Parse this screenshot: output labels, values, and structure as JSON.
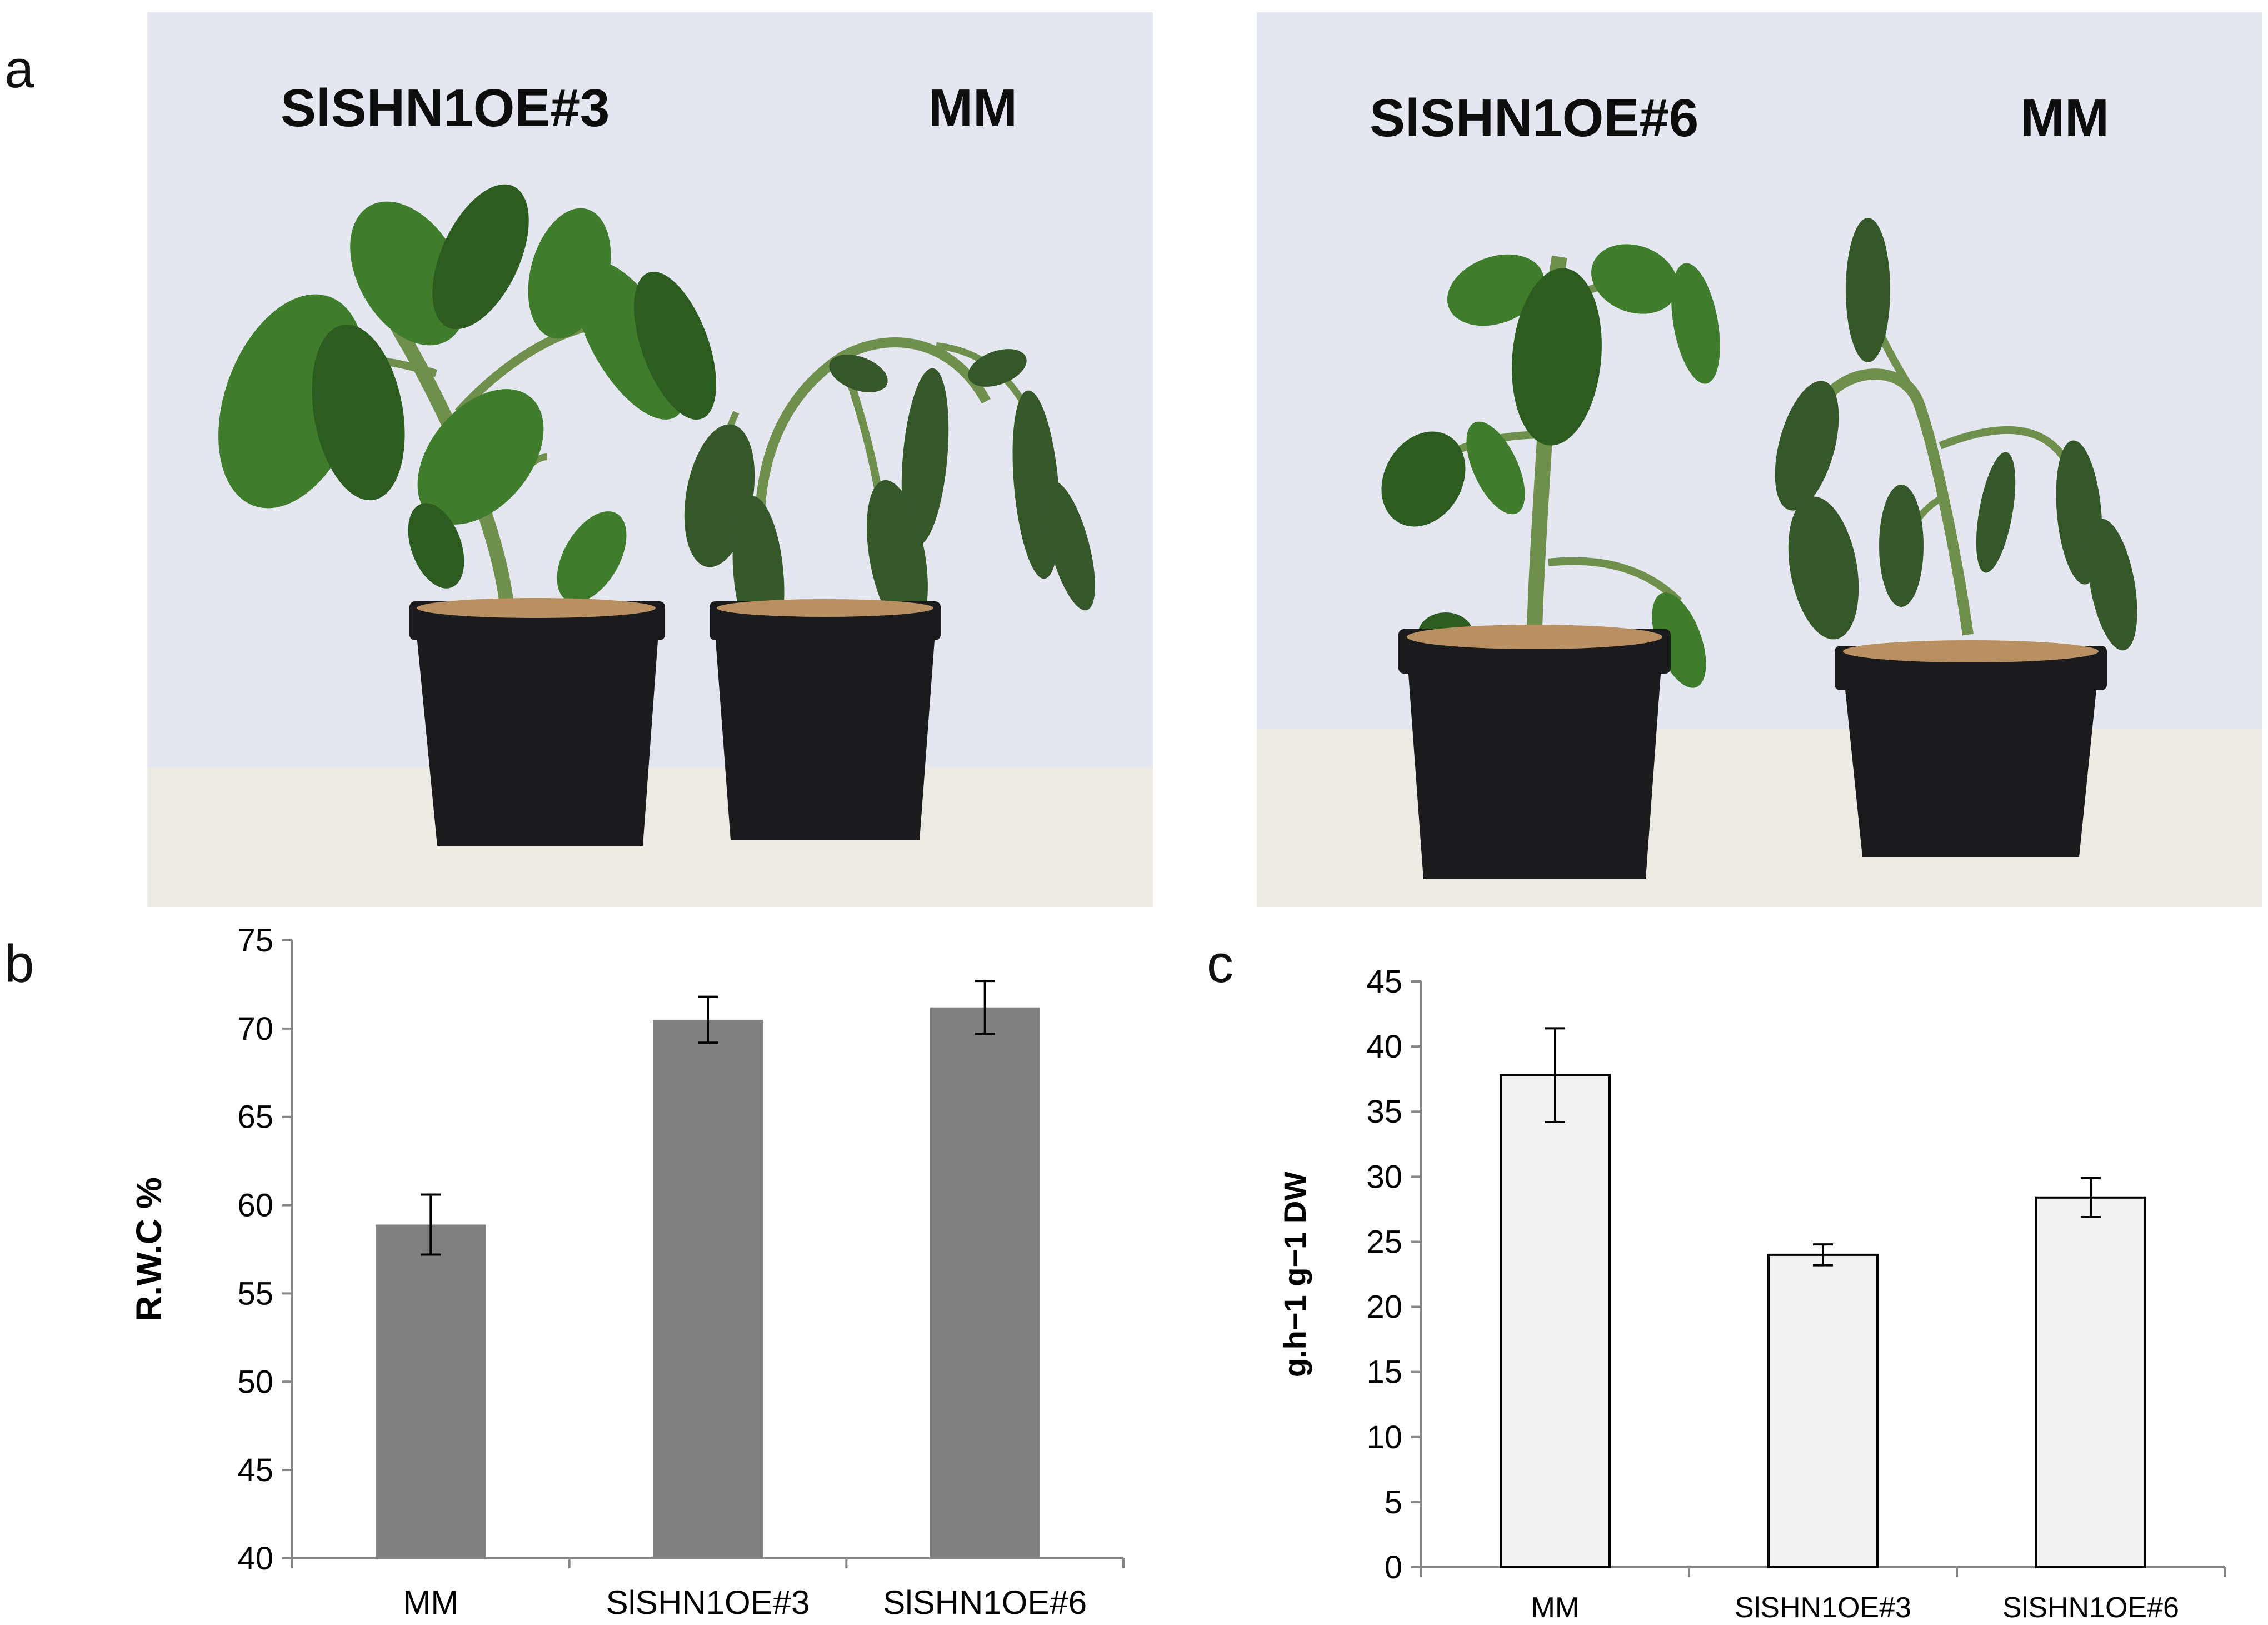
{
  "panels": {
    "a": "a",
    "b": "b",
    "c": "c"
  },
  "photos": [
    {
      "labels": [
        "SlSHN1OE#3",
        "MM"
      ],
      "plant_states": [
        "upright",
        "wilted"
      ]
    },
    {
      "labels": [
        "SlSHN1OE#6",
        "MM"
      ],
      "plant_states": [
        "upright",
        "wilted"
      ]
    }
  ],
  "colors": {
    "wall": "#e4e7ef",
    "table": "#eceae1",
    "pot": "#1b1b1d",
    "soil": "#b89062",
    "leaf": "#3f7d2c",
    "leaf_dark": "#2c5c20",
    "leaf_wilted": "#35572a",
    "stem": "#6f8f4d",
    "bar_b": "#808080",
    "bar_c": "#f2f2f2",
    "bar_c_stroke": "#000000",
    "axis": "#868686"
  },
  "chart_data": [
    {
      "type": "bar",
      "title": "",
      "xlabel": "",
      "ylabel": "R.W.C %",
      "categories": [
        "MM",
        "SlSHN1OE#3",
        "SlSHN1OE#6"
      ],
      "values": [
        58.9,
        70.5,
        71.2
      ],
      "errors": [
        1.7,
        1.3,
        1.5
      ],
      "ylim": [
        40,
        75
      ],
      "yticks": [
        40,
        45,
        50,
        55,
        60,
        65,
        70,
        75
      ],
      "grid": false,
      "legend": "none"
    },
    {
      "type": "bar",
      "title": "",
      "xlabel": "",
      "ylabel": "g.h−1 g−1 DW",
      "categories": [
        "MM",
        "SlSHN1OE#3",
        "SlSHN1OE#6"
      ],
      "values": [
        37.8,
        24.0,
        28.4
      ],
      "errors": [
        3.6,
        0.8,
        1.5
      ],
      "ylim": [
        0,
        45
      ],
      "yticks": [
        0,
        5,
        10,
        15,
        20,
        25,
        30,
        35,
        40,
        45
      ],
      "grid": false,
      "legend": "none"
    }
  ]
}
